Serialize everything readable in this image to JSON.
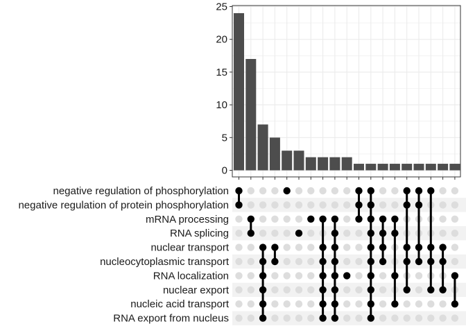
{
  "chart_data": {
    "type": "upset",
    "title": "",
    "xlabel": "",
    "ylabel": "",
    "ylim": [
      0,
      25
    ],
    "y_ticks": [
      0,
      5,
      10,
      15,
      20,
      25
    ],
    "sets": [
      "negative regulation of phosphorylation",
      "negative regulation of protein phosphorylation",
      "mRNA processing",
      "RNA splicing",
      "nuclear transport",
      "nucleocytoplasmic transport",
      "RNA localization",
      "nuclear export",
      "nucleic acid transport",
      "RNA export from nucleus"
    ],
    "intersections": [
      {
        "size": 24,
        "sets": [
          0,
          1
        ]
      },
      {
        "size": 17,
        "sets": [
          2,
          3
        ]
      },
      {
        "size": 7,
        "sets": [
          4,
          5,
          6,
          7,
          8,
          9
        ]
      },
      {
        "size": 5,
        "sets": [
          4,
          5
        ]
      },
      {
        "size": 3,
        "sets": [
          0
        ]
      },
      {
        "size": 3,
        "sets": [
          3
        ]
      },
      {
        "size": 2,
        "sets": [
          2
        ]
      },
      {
        "size": 2,
        "sets": [
          2,
          4,
          5,
          6,
          7,
          8,
          9
        ]
      },
      {
        "size": 2,
        "sets": [
          2,
          3,
          4,
          5,
          6,
          7,
          8,
          9
        ]
      },
      {
        "size": 2,
        "sets": [
          6
        ]
      },
      {
        "size": 1,
        "sets": [
          0,
          1,
          2
        ]
      },
      {
        "size": 1,
        "sets": [
          0,
          1,
          2,
          3,
          4,
          5,
          6,
          7,
          8,
          9
        ]
      },
      {
        "size": 1,
        "sets": [
          2,
          3,
          4,
          5
        ]
      },
      {
        "size": 1,
        "sets": [
          2,
          3,
          6,
          8
        ]
      },
      {
        "size": 1,
        "sets": [
          0,
          1,
          4,
          5,
          7
        ]
      },
      {
        "size": 1,
        "sets": [
          0,
          1,
          4,
          5
        ]
      },
      {
        "size": 1,
        "sets": [
          0,
          4,
          5,
          7
        ]
      },
      {
        "size": 1,
        "sets": [
          4,
          5,
          7
        ]
      },
      {
        "size": 1,
        "sets": [
          6,
          8
        ]
      }
    ],
    "colors": {
      "bar": "#4d4d4d",
      "dot_active": "#000000",
      "dot_inactive": "#dddddd",
      "row_shade": "#f2f2f2",
      "grid": "#ebebeb",
      "axis": "#333333"
    },
    "grid": true,
    "legend": "none"
  }
}
